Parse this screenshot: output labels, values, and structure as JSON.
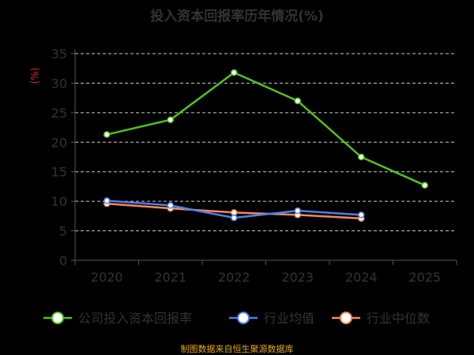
{
  "chart_data": {
    "type": "line",
    "title": "投入资本回报率历年情况(%)",
    "ylabel": "(%)",
    "xlabel": "",
    "categories": [
      "2020",
      "2021",
      "2022",
      "2023",
      "2024",
      "2025"
    ],
    "ylim": [
      0,
      35
    ],
    "yticks": [
      0,
      5,
      10,
      15,
      20,
      25,
      30,
      35
    ],
    "grid": true,
    "legend_position": "bottom",
    "series": [
      {
        "name": "公司投入资本回报率",
        "color": "#52c41a",
        "values": [
          21.3,
          23.8,
          31.8,
          27.0,
          17.5,
          12.7
        ]
      },
      {
        "name": "行业均值",
        "color": "#4e7fe8",
        "values": [
          10.1,
          9.3,
          7.2,
          8.4,
          7.7,
          null
        ]
      },
      {
        "name": "行业中位数",
        "color": "#f28a5e",
        "values": [
          9.6,
          8.8,
          8.1,
          7.7,
          7.1,
          null
        ]
      }
    ]
  },
  "footer": {
    "source": "制图数据来自恒生聚源数据库"
  }
}
